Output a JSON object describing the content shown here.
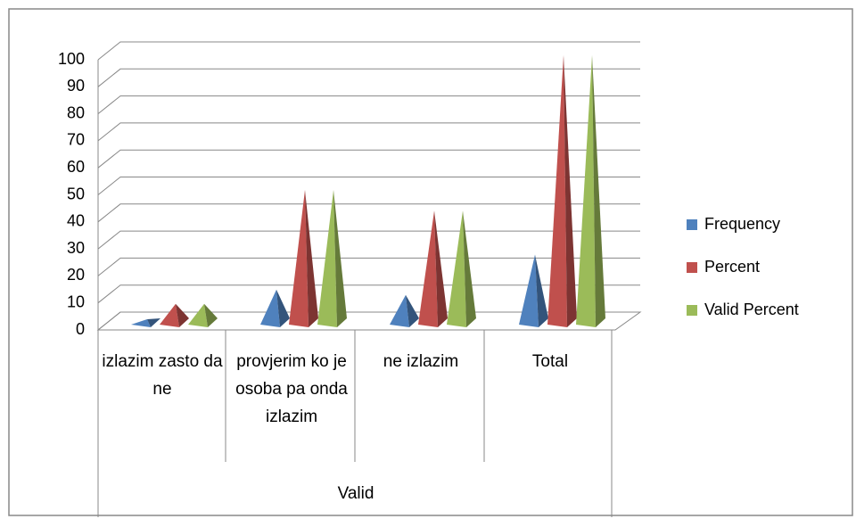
{
  "chart_data": {
    "type": "pyramid3d",
    "categories": [
      "izlazim zasto da ne",
      "provjerim ko je osoba pa onda izlazim",
      "ne izlazim",
      "Total"
    ],
    "group_label": "Valid",
    "series": [
      {
        "name": "Frequency",
        "color": "#4f81bd",
        "values": [
          2,
          13,
          11,
          26
        ]
      },
      {
        "name": "Percent",
        "color": "#c0504d",
        "values": [
          7.7,
          50,
          42.3,
          100
        ]
      },
      {
        "name": "Valid Percent",
        "color": "#9bbb59",
        "values": [
          7.7,
          50,
          42.3,
          100
        ]
      }
    ],
    "ylim": [
      0,
      100
    ],
    "yticks": [
      0,
      10,
      20,
      30,
      40,
      50,
      60,
      70,
      80,
      90,
      100
    ],
    "grid": true,
    "legend": "right"
  }
}
